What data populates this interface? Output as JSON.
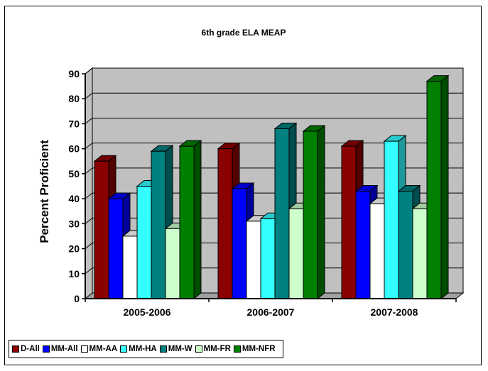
{
  "chart_data": {
    "type": "bar",
    "title": "6th grade ELA MEAP",
    "ylabel": "Percent Proficient",
    "xlabel": "",
    "ylim": [
      0,
      90
    ],
    "yticks": [
      0,
      10,
      20,
      30,
      40,
      50,
      60,
      70,
      80,
      90
    ],
    "grid": true,
    "legend_position": "bottom-left",
    "categories": [
      "2005-2006",
      "2006-2007",
      "2007-2008"
    ],
    "series": [
      {
        "name": "D-All",
        "color": "#8B0000",
        "values": [
          55,
          60,
          61
        ]
      },
      {
        "name": "MM-All",
        "color": "#0000FF",
        "values": [
          40,
          44,
          43
        ]
      },
      {
        "name": "MM-AA",
        "color": "#FFFFFF",
        "values": [
          25,
          31,
          38
        ]
      },
      {
        "name": "MM-HA",
        "color": "#33FFFF",
        "values": [
          45,
          32,
          63
        ]
      },
      {
        "name": "MM-W",
        "color": "#008080",
        "values": [
          59,
          68,
          43
        ]
      },
      {
        "name": "MM-FR",
        "color": "#CCFFCC",
        "values": [
          28,
          36,
          36
        ]
      },
      {
        "name": "MM-NFR",
        "color": "#008000",
        "values": [
          61,
          67,
          87
        ]
      }
    ]
  }
}
